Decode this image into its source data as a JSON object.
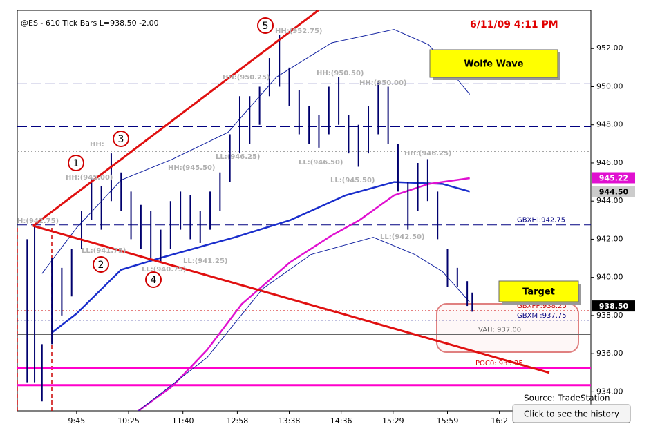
{
  "chart_data": {
    "type": "price_bars",
    "title": "@ES - 610 Tick Bars  L=938.50  -2.00",
    "timestamp": "6/11/09  4:11 PM",
    "xlim": [
      0,
      116
    ],
    "xticks": [
      {
        "value": 12,
        "label": "9:45"
      },
      {
        "value": 22.5,
        "label": "10:25"
      },
      {
        "value": 33.5,
        "label": "11:40"
      },
      {
        "value": 44.5,
        "label": "12:58"
      },
      {
        "value": 55,
        "label": "13:38"
      },
      {
        "value": 65.5,
        "label": "14:36"
      },
      {
        "value": 76,
        "label": "15:29"
      },
      {
        "value": 87,
        "label": "15:59"
      },
      {
        "value": 97.5,
        "label": "16:2"
      }
    ],
    "ylim": [
      933,
      954
    ],
    "yticks": [
      {
        "value": 934,
        "label": "934.00"
      },
      {
        "value": 936,
        "label": "936.00"
      },
      {
        "value": 938,
        "label": "938.00"
      },
      {
        "value": 940,
        "label": "940.00"
      },
      {
        "value": 942,
        "label": "942.00"
      },
      {
        "value": 944,
        "label": "944.00"
      },
      {
        "value": 946,
        "label": "946.00"
      },
      {
        "value": 948,
        "label": "948.00"
      },
      {
        "value": 950,
        "label": "950.00"
      },
      {
        "value": 952,
        "label": "952.00"
      }
    ],
    "bar_color": "#00006e",
    "x": [
      2,
      3.5,
      5,
      7,
      9,
      11,
      13,
      15,
      17,
      19,
      21,
      23,
      25,
      27,
      29,
      31,
      33,
      35,
      37,
      39,
      41,
      43,
      45,
      47,
      49,
      51,
      53,
      55,
      57,
      59,
      61,
      63,
      65,
      67,
      69,
      71,
      73,
      75,
      77,
      79,
      81,
      83,
      85,
      87,
      89,
      91,
      92
    ],
    "high": [
      942,
      942.8,
      936.5,
      941,
      940.5,
      941.5,
      943.5,
      945.2,
      944.8,
      946.5,
      945.5,
      944.5,
      943.8,
      943.5,
      942.5,
      944,
      944.5,
      944.3,
      943.5,
      944.5,
      945.5,
      947.5,
      949.5,
      949.5,
      950,
      951.5,
      952.7,
      951,
      949.8,
      949,
      948.5,
      950,
      950.5,
      948.5,
      948,
      949,
      950.3,
      950,
      947,
      945,
      946,
      946.2,
      944.5,
      941.5,
      940.5,
      939.8,
      939.2
    ],
    "low": [
      934.5,
      934.5,
      933.5,
      936.5,
      938,
      939,
      941.5,
      943,
      942.5,
      944,
      943.5,
      942,
      941.5,
      941,
      940.8,
      941.5,
      942.5,
      942,
      941.8,
      942.5,
      943.5,
      945,
      946.5,
      947,
      948,
      949.5,
      950,
      949,
      947.5,
      947,
      946.8,
      947.5,
      948,
      946.5,
      945.8,
      946.5,
      947.5,
      947,
      944.5,
      942.5,
      943.5,
      944,
      942,
      939.5,
      939.5,
      938.5,
      938.2
    ],
    "lines": [
      {
        "color": "#1a2ecc",
        "width": 2.5,
        "x": [
          7,
          12,
          21,
          28.7,
          38.4,
          44,
          55.2,
          66.4,
          76.2,
          86,
          91.5
        ],
        "y": [
          937.1,
          938.1,
          940.4,
          941,
          941.7,
          942.1,
          943,
          944.3,
          945,
          944.9,
          944.5
        ]
      },
      {
        "color": "#e010d0",
        "width": 2.5,
        "x": [
          24.5,
          31.4,
          38.4,
          45.4,
          55.2,
          63.6,
          69.2,
          76.2,
          83.2,
          91.5
        ],
        "y": [
          933,
          934.3,
          936.2,
          938.6,
          940.8,
          942.2,
          943,
          944.3,
          944.9,
          945.2
        ]
      },
      {
        "color": "#1020a0",
        "width": 1,
        "x": [
          5,
          12,
          21,
          31.4,
          42.6,
          52.4,
          63.6,
          76.2,
          83.2,
          91.5
        ],
        "y": [
          940.2,
          942.6,
          945.1,
          946.2,
          947.6,
          950.5,
          952.3,
          953,
          952.2,
          949.6
        ]
      },
      {
        "color": "#1020a0",
        "width": 1,
        "x": [
          24.5,
          38.4,
          49.6,
          59.4,
          72,
          80.4,
          86,
          91.5
        ],
        "y": [
          933,
          935.8,
          939.4,
          941.2,
          942.1,
          941.2,
          940.3,
          938.7
        ]
      }
    ],
    "levels": [
      {
        "value": 950.15,
        "color": "#000080",
        "style": "dash"
      },
      {
        "value": 947.9,
        "color": "#000080",
        "style": "dash"
      },
      {
        "value": 946.6,
        "color": "#999999",
        "style": "dot"
      },
      {
        "value": 942.75,
        "color": "#000080",
        "style": "dash",
        "label": "GBXHi:942.75"
      },
      {
        "value": 938.25,
        "color": "#cc0000",
        "style": "dot",
        "label": "GBXPP:938.25"
      },
      {
        "value": 937.75,
        "color": "#000080",
        "style": "dot",
        "label": "GBXM :937.75"
      },
      {
        "value": 937,
        "color": "#666666",
        "style": "solid",
        "label": "VAH: 937.00"
      },
      {
        "value": 935.25,
        "color": "#ff00cc",
        "style": "thick",
        "label": "POC0: 935.25",
        "label_color": "#dd0000"
      },
      {
        "value": 934.35,
        "color": "#ff00cc",
        "style": "thick"
      }
    ],
    "trendlines": [
      {
        "color": "#e01010",
        "x": [
          3.2,
          62.9
        ],
        "y": [
          942.7,
          954.4
        ]
      },
      {
        "color": "#e01010",
        "x": [
          3.2,
          107.6
        ],
        "y": [
          942.7,
          935
        ]
      }
    ],
    "wave_points": [
      "1",
      "2",
      "3",
      "4",
      "5"
    ],
    "annotations": [
      "H:(942.75)",
      "HH:(945.00)",
      "HH:",
      "LL:(941.75)",
      "LL:(940.75)",
      "HH:(945.50)",
      "LL:(941.25)",
      "HH:(950.25)",
      "LL:(946.25)",
      "HH:(952.75)",
      "LL:(946.50)",
      "HH:(950.50)",
      "LL:(945.50)",
      "HH:(950.00)",
      "HH:(946.25)",
      "LL:(942.50)"
    ],
    "price_labels": [
      {
        "value": 945.22,
        "color": "#e010d0",
        "text_color": "#ffffff"
      },
      {
        "value": 944.5,
        "label": "944.50",
        "color": "#cccccc",
        "text_color": "#000000"
      },
      {
        "value": 938.5,
        "label": "938.50",
        "color": "#000000",
        "text_color": "#ffffff"
      }
    ],
    "boxes": [
      "Wolfe Wave",
      "Target"
    ],
    "source": "Source: TradeStation",
    "button": "Click to see the history"
  }
}
